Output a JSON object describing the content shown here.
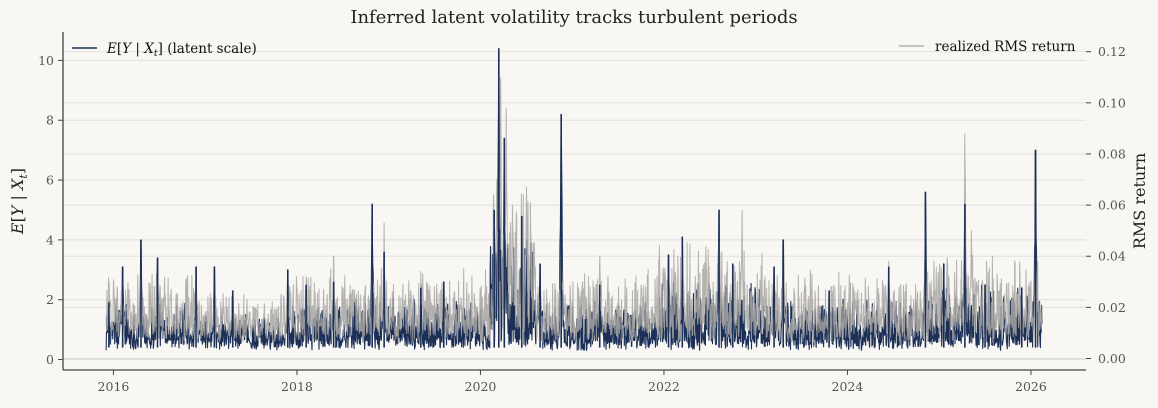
{
  "chart_data": {
    "type": "line",
    "title": "Inferred latent volatility tracks turbulent periods",
    "xlabel": "",
    "ylabel_left": "E[Y | X_t]",
    "ylabel_right": "RMS return",
    "xlim": [
      2015.45,
      2026.6
    ],
    "ylim_left": [
      -0.35,
      10.95
    ],
    "ylim_right": [
      -0.0045,
      0.1277
    ],
    "x_ticks": [
      2016,
      2018,
      2020,
      2022,
      2024,
      2026
    ],
    "x_tick_labels": [
      "2016",
      "2018",
      "2020",
      "2022",
      "2024",
      "2026"
    ],
    "y_left_ticks": [
      0,
      2,
      4,
      6,
      8,
      10
    ],
    "y_left_tick_labels": [
      "0",
      "2",
      "4",
      "6",
      "8",
      "10"
    ],
    "y_right_ticks": [
      0.0,
      0.02,
      0.04,
      0.06,
      0.08,
      0.1,
      0.12
    ],
    "y_right_tick_labels": [
      "0.00",
      "0.02",
      "0.04",
      "0.06",
      "0.08",
      "0.10",
      "0.12"
    ],
    "grid": "horizontal (left axis)",
    "legend_left": "top-left",
    "legend_right": "top-right",
    "colors": {
      "latent": "#1b2f57",
      "realized": "#a8a6a2",
      "background": "#f9f7f4",
      "grid": "#e2e0dc"
    },
    "series": [
      {
        "name": "E[Y | X_t] (latent scale)",
        "axis": "left",
        "baseline": 0.55,
        "spikes": [
          {
            "x": 2015.95,
            "y": 1.9
          },
          {
            "x": 2016.1,
            "y": 3.1
          },
          {
            "x": 2016.3,
            "y": 4.0
          },
          {
            "x": 2016.48,
            "y": 3.4
          },
          {
            "x": 2016.9,
            "y": 3.1
          },
          {
            "x": 2017.1,
            "y": 3.1
          },
          {
            "x": 2017.3,
            "y": 2.3
          },
          {
            "x": 2017.9,
            "y": 3.0
          },
          {
            "x": 2018.1,
            "y": 2.5
          },
          {
            "x": 2018.4,
            "y": 2.6
          },
          {
            "x": 2018.82,
            "y": 5.2
          },
          {
            "x": 2018.95,
            "y": 3.6
          },
          {
            "x": 2019.35,
            "y": 2.4
          },
          {
            "x": 2019.6,
            "y": 2.6
          },
          {
            "x": 2020.15,
            "y": 5.0
          },
          {
            "x": 2020.2,
            "y": 10.4
          },
          {
            "x": 2020.26,
            "y": 7.4
          },
          {
            "x": 2020.45,
            "y": 4.8
          },
          {
            "x": 2020.65,
            "y": 3.2
          },
          {
            "x": 2020.88,
            "y": 8.2
          },
          {
            "x": 2021.3,
            "y": 2.5
          },
          {
            "x": 2022.05,
            "y": 3.5
          },
          {
            "x": 2022.2,
            "y": 4.1
          },
          {
            "x": 2022.6,
            "y": 5.0
          },
          {
            "x": 2022.75,
            "y": 3.2
          },
          {
            "x": 2023.2,
            "y": 3.1
          },
          {
            "x": 2023.3,
            "y": 4.0
          },
          {
            "x": 2023.8,
            "y": 2.3
          },
          {
            "x": 2024.45,
            "y": 3.1
          },
          {
            "x": 2024.85,
            "y": 5.6
          },
          {
            "x": 2025.05,
            "y": 3.2
          },
          {
            "x": 2025.28,
            "y": 5.2
          },
          {
            "x": 2025.5,
            "y": 2.5
          },
          {
            "x": 2025.9,
            "y": 2.4
          },
          {
            "x": 2026.05,
            "y": 7.0
          }
        ]
      },
      {
        "name": "realized RMS return",
        "axis": "right",
        "baseline": 0.011,
        "spikes": [
          {
            "x": 2015.95,
            "y": 0.028
          },
          {
            "x": 2016.1,
            "y": 0.03
          },
          {
            "x": 2016.3,
            "y": 0.035
          },
          {
            "x": 2016.9,
            "y": 0.03
          },
          {
            "x": 2017.1,
            "y": 0.028
          },
          {
            "x": 2017.3,
            "y": 0.025
          },
          {
            "x": 2018.1,
            "y": 0.032
          },
          {
            "x": 2018.4,
            "y": 0.04
          },
          {
            "x": 2018.82,
            "y": 0.04
          },
          {
            "x": 2018.95,
            "y": 0.053
          },
          {
            "x": 2019.35,
            "y": 0.034
          },
          {
            "x": 2019.6,
            "y": 0.028
          },
          {
            "x": 2020.18,
            "y": 0.07
          },
          {
            "x": 2020.22,
            "y": 0.11
          },
          {
            "x": 2020.28,
            "y": 0.098
          },
          {
            "x": 2020.35,
            "y": 0.06
          },
          {
            "x": 2020.5,
            "y": 0.067
          },
          {
            "x": 2020.88,
            "y": 0.056
          },
          {
            "x": 2021.3,
            "y": 0.04
          },
          {
            "x": 2022.2,
            "y": 0.045
          },
          {
            "x": 2022.6,
            "y": 0.055
          },
          {
            "x": 2022.85,
            "y": 0.058
          },
          {
            "x": 2023.3,
            "y": 0.045
          },
          {
            "x": 2024.45,
            "y": 0.038
          },
          {
            "x": 2024.85,
            "y": 0.05
          },
          {
            "x": 2025.28,
            "y": 0.088
          },
          {
            "x": 2025.35,
            "y": 0.05
          },
          {
            "x": 2025.9,
            "y": 0.028
          },
          {
            "x": 2026.05,
            "y": 0.05
          }
        ]
      }
    ]
  }
}
